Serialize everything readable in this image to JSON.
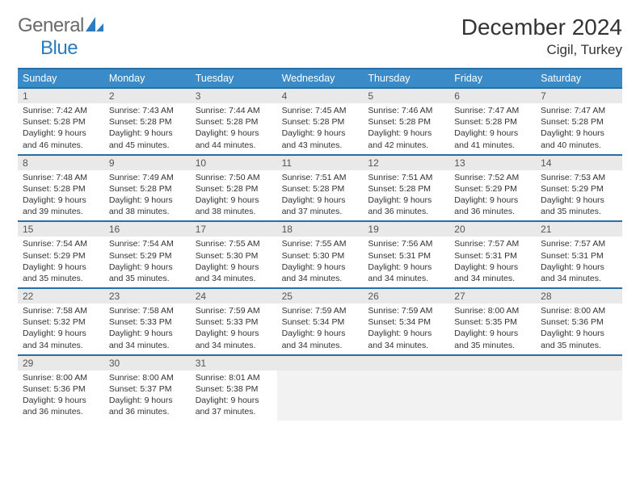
{
  "logo": {
    "part1": "General",
    "part2": "Blue",
    "icon_color": "#2b7bbd"
  },
  "title": "December 2024",
  "location": "Cigil, Turkey",
  "colors": {
    "header_bg": "#3b8bc9",
    "header_border": "#2a6ea3",
    "daynum_bg": "#e9e9e9",
    "empty_bg": "#f2f2f2"
  },
  "weekdays": [
    "Sunday",
    "Monday",
    "Tuesday",
    "Wednesday",
    "Thursday",
    "Friday",
    "Saturday"
  ],
  "weeks": [
    [
      {
        "n": "1",
        "sr": "7:42 AM",
        "ss": "5:28 PM",
        "dl": "9 hours and 46 minutes."
      },
      {
        "n": "2",
        "sr": "7:43 AM",
        "ss": "5:28 PM",
        "dl": "9 hours and 45 minutes."
      },
      {
        "n": "3",
        "sr": "7:44 AM",
        "ss": "5:28 PM",
        "dl": "9 hours and 44 minutes."
      },
      {
        "n": "4",
        "sr": "7:45 AM",
        "ss": "5:28 PM",
        "dl": "9 hours and 43 minutes."
      },
      {
        "n": "5",
        "sr": "7:46 AM",
        "ss": "5:28 PM",
        "dl": "9 hours and 42 minutes."
      },
      {
        "n": "6",
        "sr": "7:47 AM",
        "ss": "5:28 PM",
        "dl": "9 hours and 41 minutes."
      },
      {
        "n": "7",
        "sr": "7:47 AM",
        "ss": "5:28 PM",
        "dl": "9 hours and 40 minutes."
      }
    ],
    [
      {
        "n": "8",
        "sr": "7:48 AM",
        "ss": "5:28 PM",
        "dl": "9 hours and 39 minutes."
      },
      {
        "n": "9",
        "sr": "7:49 AM",
        "ss": "5:28 PM",
        "dl": "9 hours and 38 minutes."
      },
      {
        "n": "10",
        "sr": "7:50 AM",
        "ss": "5:28 PM",
        "dl": "9 hours and 38 minutes."
      },
      {
        "n": "11",
        "sr": "7:51 AM",
        "ss": "5:28 PM",
        "dl": "9 hours and 37 minutes."
      },
      {
        "n": "12",
        "sr": "7:51 AM",
        "ss": "5:28 PM",
        "dl": "9 hours and 36 minutes."
      },
      {
        "n": "13",
        "sr": "7:52 AM",
        "ss": "5:29 PM",
        "dl": "9 hours and 36 minutes."
      },
      {
        "n": "14",
        "sr": "7:53 AM",
        "ss": "5:29 PM",
        "dl": "9 hours and 35 minutes."
      }
    ],
    [
      {
        "n": "15",
        "sr": "7:54 AM",
        "ss": "5:29 PM",
        "dl": "9 hours and 35 minutes."
      },
      {
        "n": "16",
        "sr": "7:54 AM",
        "ss": "5:29 PM",
        "dl": "9 hours and 35 minutes."
      },
      {
        "n": "17",
        "sr": "7:55 AM",
        "ss": "5:30 PM",
        "dl": "9 hours and 34 minutes."
      },
      {
        "n": "18",
        "sr": "7:55 AM",
        "ss": "5:30 PM",
        "dl": "9 hours and 34 minutes."
      },
      {
        "n": "19",
        "sr": "7:56 AM",
        "ss": "5:31 PM",
        "dl": "9 hours and 34 minutes."
      },
      {
        "n": "20",
        "sr": "7:57 AM",
        "ss": "5:31 PM",
        "dl": "9 hours and 34 minutes."
      },
      {
        "n": "21",
        "sr": "7:57 AM",
        "ss": "5:31 PM",
        "dl": "9 hours and 34 minutes."
      }
    ],
    [
      {
        "n": "22",
        "sr": "7:58 AM",
        "ss": "5:32 PM",
        "dl": "9 hours and 34 minutes."
      },
      {
        "n": "23",
        "sr": "7:58 AM",
        "ss": "5:33 PM",
        "dl": "9 hours and 34 minutes."
      },
      {
        "n": "24",
        "sr": "7:59 AM",
        "ss": "5:33 PM",
        "dl": "9 hours and 34 minutes."
      },
      {
        "n": "25",
        "sr": "7:59 AM",
        "ss": "5:34 PM",
        "dl": "9 hours and 34 minutes."
      },
      {
        "n": "26",
        "sr": "7:59 AM",
        "ss": "5:34 PM",
        "dl": "9 hours and 34 minutes."
      },
      {
        "n": "27",
        "sr": "8:00 AM",
        "ss": "5:35 PM",
        "dl": "9 hours and 35 minutes."
      },
      {
        "n": "28",
        "sr": "8:00 AM",
        "ss": "5:36 PM",
        "dl": "9 hours and 35 minutes."
      }
    ],
    [
      {
        "n": "29",
        "sr": "8:00 AM",
        "ss": "5:36 PM",
        "dl": "9 hours and 36 minutes."
      },
      {
        "n": "30",
        "sr": "8:00 AM",
        "ss": "5:37 PM",
        "dl": "9 hours and 36 minutes."
      },
      {
        "n": "31",
        "sr": "8:01 AM",
        "ss": "5:38 PM",
        "dl": "9 hours and 37 minutes."
      },
      null,
      null,
      null,
      null
    ]
  ],
  "labels": {
    "sunrise": "Sunrise:",
    "sunset": "Sunset:",
    "daylight": "Daylight:"
  }
}
